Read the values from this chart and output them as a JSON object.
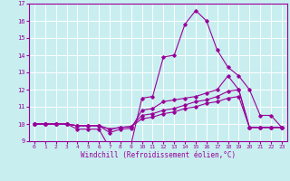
{
  "xlabel": "Windchill (Refroidissement éolien,°C)",
  "bg_color": "#c8eef0",
  "grid_color": "#ffffff",
  "line_color": "#990099",
  "xlim": [
    -0.5,
    23.5
  ],
  "ylim": [
    9.0,
    17.0
  ],
  "yticks": [
    9,
    10,
    11,
    12,
    13,
    14,
    15,
    16,
    17
  ],
  "xticks": [
    0,
    1,
    2,
    3,
    4,
    5,
    6,
    7,
    8,
    9,
    10,
    11,
    12,
    13,
    14,
    15,
    16,
    17,
    18,
    19,
    20,
    21,
    22,
    23
  ],
  "series": [
    [
      10.0,
      10.0,
      10.0,
      10.0,
      9.7,
      9.7,
      9.7,
      8.6,
      8.8,
      8.85,
      11.5,
      11.6,
      13.9,
      14.0,
      15.8,
      16.6,
      16.0,
      14.3,
      13.3,
      12.8,
      12.0,
      10.5,
      10.5,
      9.8
    ],
    [
      10.0,
      10.0,
      10.0,
      10.0,
      9.9,
      9.9,
      9.9,
      9.5,
      9.7,
      9.75,
      10.8,
      10.9,
      11.3,
      11.4,
      11.5,
      11.6,
      11.8,
      12.0,
      12.8,
      12.0,
      9.8,
      9.8,
      9.8,
      9.8
    ],
    [
      10.0,
      10.0,
      10.0,
      10.0,
      9.9,
      9.9,
      9.9,
      9.7,
      9.8,
      9.85,
      10.5,
      10.6,
      10.8,
      10.9,
      11.1,
      11.3,
      11.4,
      11.6,
      11.9,
      12.0,
      9.8,
      9.8,
      9.8,
      9.8
    ],
    [
      10.0,
      10.0,
      10.0,
      10.0,
      9.9,
      9.9,
      9.9,
      9.7,
      9.8,
      9.85,
      10.3,
      10.4,
      10.6,
      10.7,
      10.9,
      11.0,
      11.2,
      11.3,
      11.5,
      11.6,
      9.8,
      9.8,
      9.8,
      9.8
    ]
  ]
}
